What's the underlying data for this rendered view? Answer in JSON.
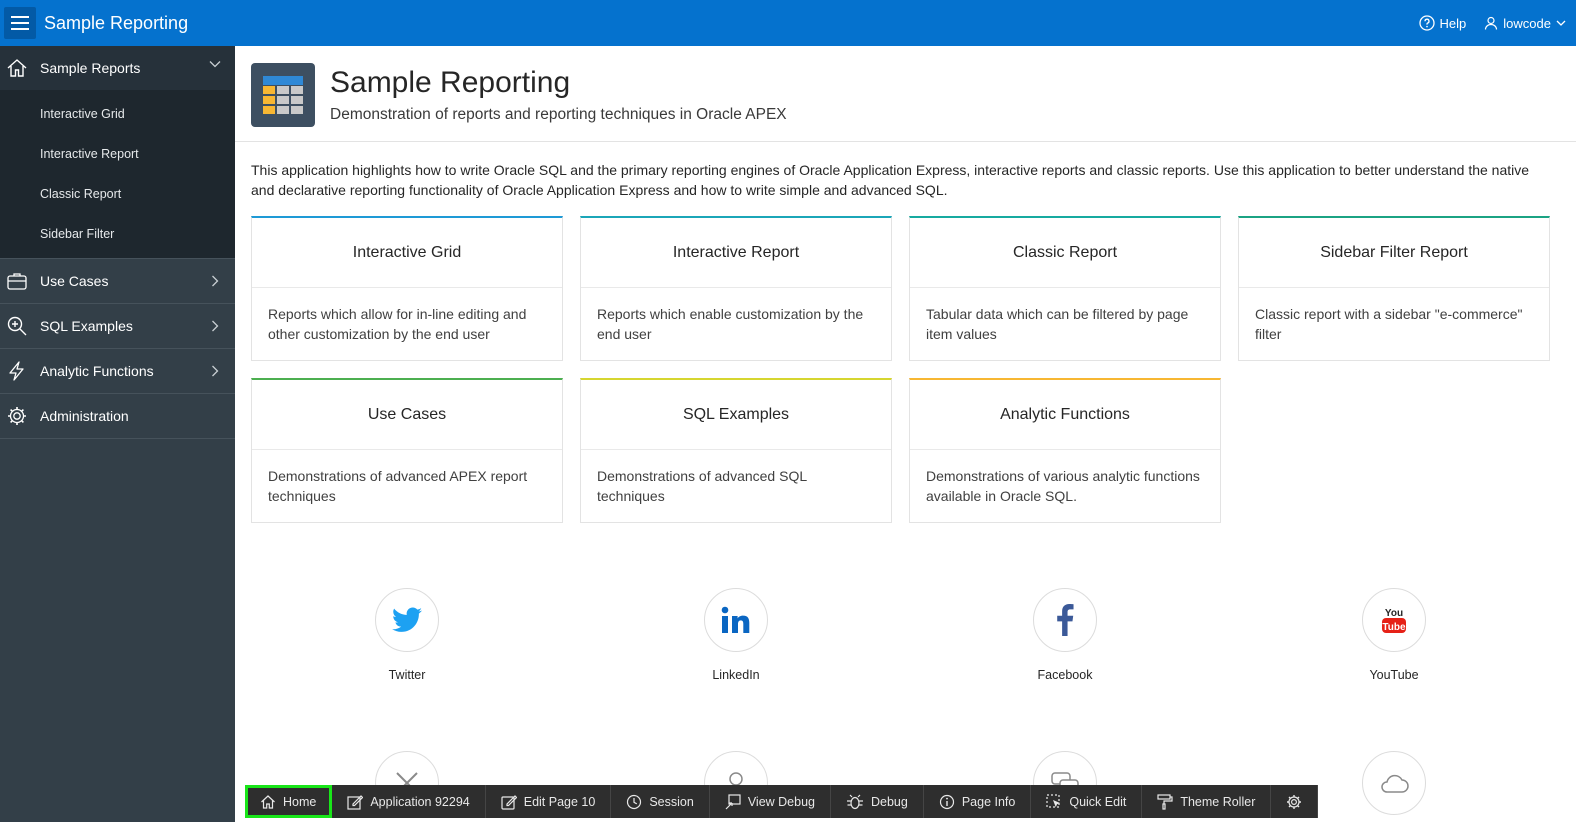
{
  "header": {
    "app_title": "Sample Reporting",
    "help_label": "Help",
    "user_label": "lowcode"
  },
  "sidebar": {
    "active_section": {
      "label": "Sample Reports",
      "icon": "home-icon",
      "children": [
        "Interactive Grid",
        "Interactive Report",
        "Classic Report",
        "Sidebar Filter"
      ]
    },
    "items": [
      {
        "label": "Use Cases",
        "icon": "briefcase-icon"
      },
      {
        "label": "SQL Examples",
        "icon": "search-icon"
      },
      {
        "label": "Analytic Functions",
        "icon": "lightning-icon"
      },
      {
        "label": "Administration",
        "icon": "gear-icon"
      }
    ]
  },
  "hero": {
    "title": "Sample Reporting",
    "subtitle": "Demonstration of reports and reporting techniques in Oracle APEX",
    "icon": "table-icon"
  },
  "intro": "This application highlights how to write Oracle SQL and the primary reporting engines of Oracle Application Express, interactive reports and classic reports. Use this application to better understand the native and declarative reporting functionality of Oracle Application Express and how to write simple and advanced SQL.",
  "cards": [
    {
      "title": "Interactive Grid",
      "body": "Reports which allow for in-line editing and other customization by the end user",
      "accent": "#1e9ad6"
    },
    {
      "title": "Interactive Report",
      "body": "Reports which enable customization by the end user",
      "accent": "#1ba6b8"
    },
    {
      "title": "Classic Report",
      "body": "Tabular data which can be filtered by page item values",
      "accent": "#16aaa0"
    },
    {
      "title": "Sidebar Filter Report",
      "body": "Classic report with a sidebar \"e-commerce\" filter",
      "accent": "#1ba383"
    },
    {
      "title": "Use Cases",
      "body": "Demonstrations of advanced APEX report techniques",
      "accent": "#4caf50"
    },
    {
      "title": "SQL Examples",
      "body": "Demonstrations of advanced SQL techniques",
      "accent": "#d6d630"
    },
    {
      "title": "Analytic Functions",
      "body": "Demonstrations of various analytic functions available in Oracle SQL.",
      "accent": "#f7b733"
    }
  ],
  "social": [
    {
      "label": "Twitter",
      "icon": "twitter-icon",
      "color": "#1da1f2"
    },
    {
      "label": "LinkedIn",
      "icon": "linkedin-icon",
      "color": "#0a66c2"
    },
    {
      "label": "Facebook",
      "icon": "facebook-icon",
      "color": "#3b5998"
    },
    {
      "label": "YouTube",
      "icon": "youtube-icon",
      "color": "#e62117"
    }
  ],
  "social_row2": [
    {
      "icon": "tools-icon"
    },
    {
      "icon": "user-icon"
    },
    {
      "icon": "chat-icon"
    },
    {
      "icon": "cloud-icon"
    }
  ],
  "devbar": {
    "home": "Home",
    "application": "Application 92294",
    "edit_page": "Edit Page 10",
    "session": "Session",
    "view_debug": "View Debug",
    "debug": "Debug",
    "page_info": "Page Info",
    "quick_edit": "Quick Edit",
    "theme_roller": "Theme Roller"
  },
  "colors": {
    "brand_blue": "#0572ce",
    "sidebar_bg": "#333f48",
    "devbar_bg": "#2e2e2e",
    "home_highlight": "#19e619"
  }
}
